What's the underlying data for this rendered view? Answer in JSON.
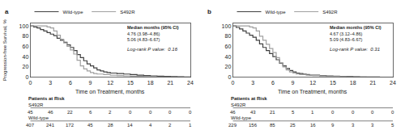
{
  "chart_data": [
    {
      "type": "step",
      "title": "a",
      "x_label": "Time on Treatment, months",
      "y_label": "Progression-free Survival, %",
      "series": [
        {
          "name": "Wild-type",
          "color": "#404040",
          "x": [
            0,
            0.5,
            1,
            1.5,
            2,
            2.5,
            3,
            3.5,
            4,
            4.5,
            5,
            5.5,
            6,
            6.5,
            7,
            7.5,
            8,
            8.5,
            9,
            9.5,
            10,
            10.5,
            11,
            11.5,
            12,
            13,
            14,
            15,
            16,
            17,
            18,
            19,
            20,
            21,
            22,
            23,
            24
          ],
          "values": [
            100,
            98,
            96,
            93,
            90,
            87,
            84,
            81,
            76,
            72,
            68,
            63,
            58,
            52,
            44,
            38,
            32,
            26,
            22,
            18,
            14,
            12,
            10,
            9,
            8,
            7,
            6,
            5,
            4,
            3,
            2.5,
            2,
            1.5,
            1,
            0.8,
            0.5,
            0.3
          ]
        },
        {
          "name": "S492R",
          "color": "#a0a0a0",
          "x": [
            0,
            0.5,
            1,
            1.5,
            2,
            2.5,
            3,
            3.5,
            4,
            4.5,
            5,
            5.5,
            6,
            6.5,
            7,
            7.5,
            8,
            8.5,
            9,
            9.5,
            10,
            11,
            12,
            13,
            14,
            15,
            16,
            17,
            18,
            19,
            20,
            21,
            22,
            23,
            24
          ],
          "values": [
            100,
            100,
            100,
            100,
            100,
            98,
            96,
            90,
            82,
            74,
            67,
            60,
            53,
            45,
            33,
            22,
            16,
            12,
            9,
            7,
            6,
            5,
            4,
            3,
            2.5,
            2,
            1.5,
            1,
            0.8,
            0.5,
            0.3,
            0.2,
            0.1,
            0,
            0
          ]
        }
      ],
      "xlim": [
        0,
        24
      ],
      "xticks": [
        0,
        3,
        6,
        9,
        12,
        15,
        18,
        21,
        24
      ],
      "ylim": [
        0,
        105
      ],
      "yticks": [
        0,
        20,
        40,
        60,
        80,
        100
      ],
      "grid": false,
      "legend": "upper left",
      "annotations": [
        "Log-rank Ρ value:  0.16"
      ],
      "median_table": {
        "title": "Median months (95% CI)",
        "rows": [
          "4.76 (3.98–4.86)",
          "5.06 (4.83–6.67)"
        ]
      },
      "risk_table": {
        "title": "Patients at Risk",
        "rows": [
          {
            "name": "S492R",
            "values": [
              45,
              46,
              22,
              6,
              2,
              0,
              0,
              0,
              0
            ]
          },
          {
            "name": "Wild-type",
            "values": [
              407,
              241,
              172,
              45,
              28,
              14,
              4,
              2,
              1
            ]
          }
        ]
      }
    },
    {
      "type": "step",
      "title": "b",
      "x_label": "Time on Treatment, months",
      "series": [
        {
          "name": "Wild-type",
          "color": "#404040",
          "x": [
            0,
            0.5,
            1,
            1.5,
            2,
            2.5,
            3,
            3.5,
            4,
            4.5,
            5,
            5.5,
            6,
            6.5,
            7,
            7.5,
            8,
            8.5,
            9,
            9.5,
            10,
            10.5,
            11,
            11.5,
            12,
            13,
            14,
            15,
            16,
            17,
            18,
            19,
            20,
            21,
            22,
            23,
            24
          ],
          "values": [
            100,
            97,
            94,
            90,
            86,
            82,
            78,
            72,
            65,
            58,
            52,
            46,
            40,
            34,
            27,
            22,
            17,
            13,
            10,
            8,
            7,
            6,
            5,
            4,
            4,
            3,
            2.5,
            2,
            1.5,
            1,
            0.8,
            0.5,
            0.3,
            0.2,
            0.1,
            0,
            0
          ]
        },
        {
          "name": "S492R",
          "color": "#a0a0a0",
          "x": [
            0,
            0.5,
            1,
            1.5,
            2,
            2.5,
            3,
            3.5,
            4,
            4.5,
            5,
            5.5,
            6,
            6.5,
            7,
            7.5,
            8,
            8.5,
            9,
            9.5,
            10,
            11,
            12,
            13,
            14,
            15,
            16,
            17,
            18,
            19,
            20,
            21,
            22,
            23,
            24
          ],
          "values": [
            100,
            100,
            100,
            100,
            100,
            98,
            96,
            90,
            80,
            72,
            64,
            56,
            48,
            38,
            28,
            20,
            14,
            10,
            8,
            6,
            5,
            4,
            3,
            2.5,
            2,
            1.5,
            1,
            0.5,
            0.3,
            0.2,
            0.1,
            0,
            0,
            0,
            0
          ]
        }
      ],
      "xlim": [
        0,
        24
      ],
      "xticks": [
        0,
        3,
        6,
        9,
        12,
        15,
        18,
        21,
        24
      ],
      "ylim": [
        0,
        105
      ],
      "yticks": [
        0,
        20,
        40,
        60,
        80,
        100
      ],
      "grid": false,
      "legend": "upper left",
      "annotations": [
        "Log-rank Ρ value:  0.31"
      ],
      "median_table": {
        "title": "Median months (95% CI)",
        "rows": [
          "4.67 (3.12–4.86)",
          "5.09 (4.83–6.67)"
        ]
      },
      "risk_table": {
        "title": "Patients at Risk",
        "rows": [
          {
            "name": "S492R",
            "values": [
              46,
              43,
              21,
              5,
              1,
              0,
              0,
              0,
              0
            ]
          },
          {
            "name": "Wild-type",
            "values": [
              229,
              156,
              85,
              25,
              16,
              9,
              3,
              3,
              5
            ]
          }
        ]
      }
    }
  ]
}
